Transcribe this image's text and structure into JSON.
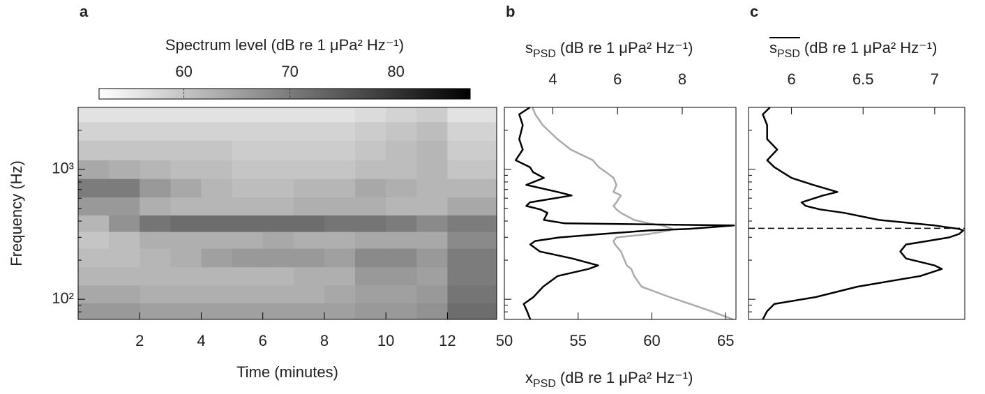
{
  "chart_data": [
    {
      "type": "heatmap",
      "panel_label": "a",
      "xlabel": "Time (minutes)",
      "ylabel": "Frequency (Hz)",
      "xlim": [
        0,
        13.6
      ],
      "xticks": [
        2,
        4,
        6,
        8,
        10,
        12
      ],
      "yscale": "log",
      "ylim": [
        70,
        3000
      ],
      "yticks": [
        {
          "value": 100,
          "label": "10²"
        },
        {
          "value": 1000,
          "label": "10³"
        }
      ],
      "yminorticks": [
        80,
        90,
        200,
        300,
        400,
        500,
        600,
        700,
        800,
        900,
        2000,
        3000
      ],
      "colorbar": {
        "label": "Spectrum level (dB re 1 μPa² Hz⁻¹)",
        "clim": [
          52,
          87
        ],
        "ticks": [
          60,
          70,
          80
        ],
        "colors": [
          "#ffffff",
          "#000000"
        ]
      },
      "times": [
        0.5,
        1.5,
        2.5,
        3.5,
        4.5,
        5.5,
        6.5,
        7.5,
        8.5,
        9.5,
        10.5,
        11.5,
        12.5,
        13.5
      ],
      "frequencies": [
        80,
        110,
        150,
        210,
        290,
        380,
        520,
        720,
        1000,
        1400,
        2000,
        2700
      ],
      "values": [
        [
          66,
          66,
          65,
          65,
          65,
          65,
          65,
          65,
          65,
          66,
          66,
          67,
          72,
          72
        ],
        [
          64,
          64,
          63,
          63,
          63,
          63,
          63,
          63,
          64,
          65,
          65,
          66,
          71,
          71
        ],
        [
          62,
          62,
          62,
          62,
          62,
          62,
          62,
          63,
          63,
          66,
          66,
          65,
          70,
          70
        ],
        [
          61,
          61,
          62,
          63,
          65,
          66,
          66,
          66,
          65,
          68,
          68,
          66,
          70,
          70
        ],
        [
          60,
          61,
          63,
          63,
          63,
          63,
          64,
          63,
          63,
          64,
          64,
          64,
          68,
          68
        ],
        [
          62,
          67,
          71,
          72,
          72,
          72,
          72,
          72,
          71,
          71,
          70,
          68,
          70,
          70
        ],
        [
          66,
          66,
          63,
          62,
          62,
          62,
          62,
          63,
          63,
          63,
          62,
          62,
          64,
          64
        ],
        [
          70,
          70,
          66,
          64,
          62,
          61,
          61,
          62,
          62,
          64,
          63,
          62,
          62,
          62
        ],
        [
          64,
          63,
          62,
          61,
          61,
          60,
          60,
          60,
          60,
          61,
          61,
          62,
          60,
          60
        ],
        [
          60,
          60,
          60,
          60,
          60,
          59,
          59,
          59,
          59,
          60,
          61,
          62,
          59,
          59
        ],
        [
          58,
          58,
          58,
          58,
          58,
          58,
          58,
          58,
          58,
          59,
          60,
          61,
          58,
          58
        ],
        [
          56,
          56,
          56,
          56,
          56,
          56,
          56,
          56,
          56,
          57,
          58,
          59,
          56,
          56
        ]
      ]
    },
    {
      "type": "line",
      "panel_label": "b",
      "xaxis_location": "top",
      "xlabel": {
        "symbol": "s",
        "subscript": "PSD",
        "unit": "(dB re 1 μPa² Hz⁻¹)"
      },
      "x2label": {
        "symbol": "x",
        "subscript": "PSD",
        "unit": "(dB re 1 μPa² Hz⁻¹)"
      },
      "xlim": [
        2.5,
        9.66
      ],
      "xticks": [
        4,
        6,
        8
      ],
      "x2lim": [
        50,
        65.7
      ],
      "x2ticks": [
        50,
        55,
        60,
        65
      ],
      "yscale": "log",
      "ylim": [
        70,
        3000
      ],
      "yticks": [
        100,
        1000
      ],
      "show_ytick_labels": false,
      "yminorticks": [
        80,
        90,
        200,
        300,
        400,
        500,
        600,
        700,
        800,
        900,
        2000,
        3000
      ],
      "frequencies": [
        3000,
        2650,
        2190,
        1710,
        1420,
        1175,
        1040,
        950,
        860,
        760,
        670,
        630,
        557,
        523,
        492,
        462,
        408,
        384,
        370,
        348,
        339,
        318,
        299,
        281,
        264,
        233,
        206,
        182,
        171,
        151,
        125,
        104,
        92,
        81,
        70
      ],
      "series": [
        {
          "color": "#aaaaaa",
          "axis": "x2",
          "values": [
            51.9,
            52.1,
            52.6,
            53.6,
            54.5,
            56.0,
            56.4,
            56.9,
            57.4,
            57.6,
            57.4,
            57.9,
            57.6,
            57.4,
            57.6,
            57.9,
            58.8,
            59.8,
            60.7,
            61.4,
            61.2,
            59.8,
            57.6,
            57.4,
            57.5,
            57.9,
            58.1,
            58.3,
            58.6,
            58.8,
            59.3,
            61.2,
            62.6,
            64.0,
            65.5
          ]
        },
        {
          "color": "#000000",
          "values": [
            3.29,
            2.96,
            3.07,
            2.96,
            3.07,
            2.85,
            3.29,
            3.39,
            3.72,
            3.18,
            4.15,
            4.58,
            3.29,
            3.18,
            3.61,
            3.83,
            3.72,
            4.37,
            9.6,
            8.2,
            7.0,
            5.5,
            4.2,
            3.45,
            3.3,
            3.6,
            4.6,
            5.4,
            5.1,
            4.15,
            3.7,
            3.4,
            3.1,
            3.2,
            3.3
          ]
        }
      ]
    },
    {
      "type": "line",
      "panel_label": "c",
      "xaxis_location": "top",
      "xlabel": {
        "symbol": "s",
        "subscript": "PSD",
        "unit": "(dB re 1 μPa² Hz⁻¹)",
        "overline": true
      },
      "xlim": [
        5.7,
        7.21
      ],
      "xticks": [
        6,
        6.5,
        7
      ],
      "yscale": "log",
      "ylim": [
        70,
        3000
      ],
      "yticks": [
        100,
        1000
      ],
      "show_ytick_labels": false,
      "yminorticks": [
        80,
        90,
        200,
        300,
        400,
        500,
        600,
        700,
        800,
        900,
        2000,
        3000
      ],
      "hline": 352,
      "frequencies": [
        3000,
        2650,
        2190,
        1710,
        1420,
        1175,
        1040,
        860,
        760,
        670,
        630,
        557,
        523,
        492,
        462,
        408,
        384,
        370,
        348,
        339,
        318,
        299,
        281,
        264,
        233,
        206,
        182,
        171,
        151,
        125,
        104,
        92,
        81,
        70
      ],
      "series": [
        {
          "color": "#000000",
          "values": [
            5.85,
            5.8,
            5.83,
            5.83,
            5.9,
            5.83,
            5.88,
            6.0,
            6.15,
            6.32,
            6.22,
            6.07,
            6.1,
            6.2,
            6.37,
            6.61,
            6.85,
            7.0,
            7.17,
            7.2,
            7.17,
            7.1,
            6.95,
            6.8,
            6.76,
            6.8,
            7.0,
            7.05,
            6.9,
            6.46,
            6.17,
            5.88,
            5.83,
            5.8
          ]
        }
      ]
    }
  ]
}
